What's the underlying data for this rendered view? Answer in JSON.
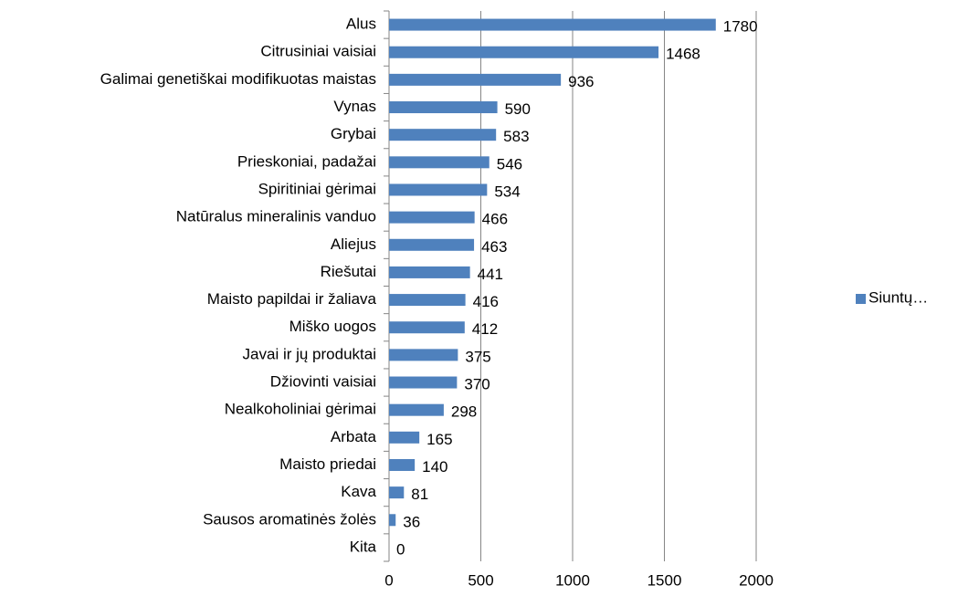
{
  "chart_data": {
    "type": "bar",
    "orientation": "horizontal",
    "categories": [
      "Alus",
      "Citrusiniai vaisiai",
      "Galimai genetiškai modifikuotas maistas",
      "Vynas",
      "Grybai",
      "Prieskoniai, padažai",
      "Spiritiniai gėrimai",
      "Natūralus mineralinis vanduo",
      "Aliejus",
      "Riešutai",
      "Maisto papildai ir žaliava",
      "Miško uogos",
      "Javai ir jų produktai",
      "Džiovinti vaisiai",
      "Nealkoholiniai gėrimai",
      "Arbata",
      "Maisto priedai",
      "Kava",
      "Sausos aromatinės žolės",
      "Kita"
    ],
    "series": [
      {
        "name": "Siuntų…",
        "color": "#4f81bd",
        "values": [
          1780,
          1468,
          936,
          590,
          583,
          546,
          534,
          466,
          463,
          441,
          416,
          412,
          375,
          370,
          298,
          165,
          140,
          81,
          36,
          0
        ]
      }
    ],
    "xlim": [
      0,
      2000
    ],
    "xticks": [
      0,
      500,
      1000,
      1500,
      2000
    ],
    "grid": true,
    "legend": "right",
    "data_labels": true
  }
}
